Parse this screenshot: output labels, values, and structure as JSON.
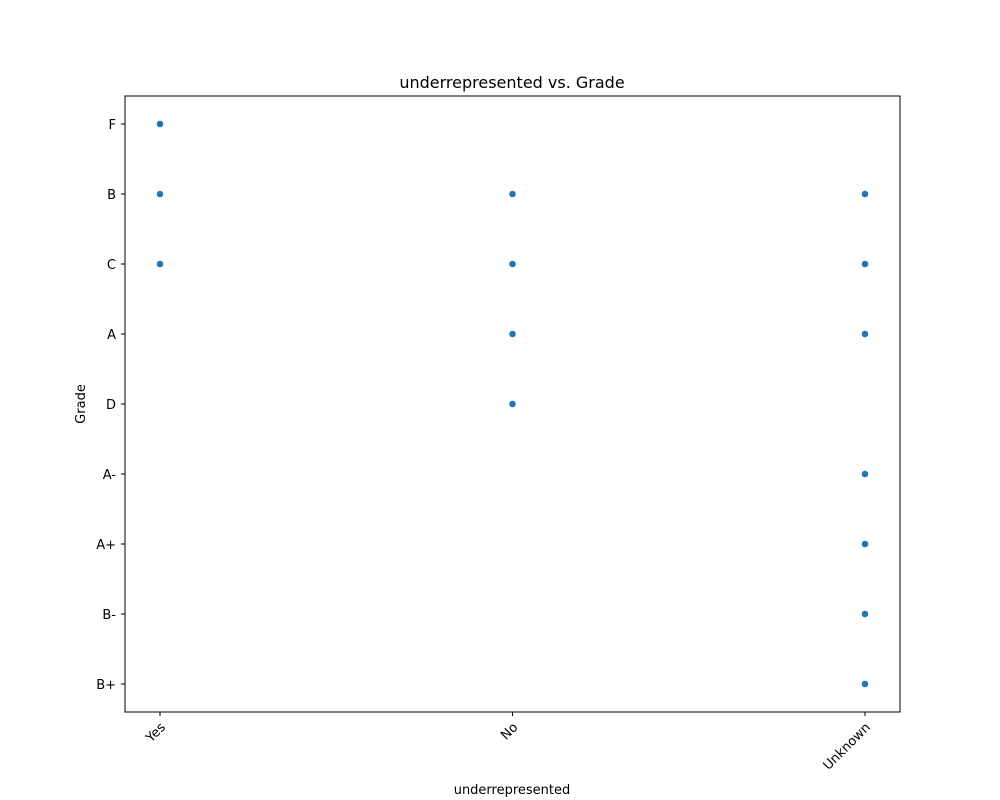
{
  "chart_data": {
    "type": "scatter",
    "title": "underrepresented vs. Grade",
    "xlabel": "underrepresented",
    "ylabel": "Grade",
    "x_categories": [
      "Yes",
      "No",
      "Unknown"
    ],
    "y_categories": [
      "F",
      "B",
      "C",
      "A",
      "D",
      "A-",
      "A+",
      "B-",
      "B+"
    ],
    "grid": false,
    "legend": "none",
    "point_color": "#1f77b4",
    "points": [
      {
        "x": "Yes",
        "y": "F"
      },
      {
        "x": "Yes",
        "y": "B"
      },
      {
        "x": "Yes",
        "y": "C"
      },
      {
        "x": "No",
        "y": "B"
      },
      {
        "x": "No",
        "y": "C"
      },
      {
        "x": "No",
        "y": "A"
      },
      {
        "x": "No",
        "y": "D"
      },
      {
        "x": "Unknown",
        "y": "B"
      },
      {
        "x": "Unknown",
        "y": "C"
      },
      {
        "x": "Unknown",
        "y": "A"
      },
      {
        "x": "Unknown",
        "y": "A-"
      },
      {
        "x": "Unknown",
        "y": "A+"
      },
      {
        "x": "Unknown",
        "y": "B-"
      },
      {
        "x": "Unknown",
        "y": "B+"
      }
    ]
  }
}
